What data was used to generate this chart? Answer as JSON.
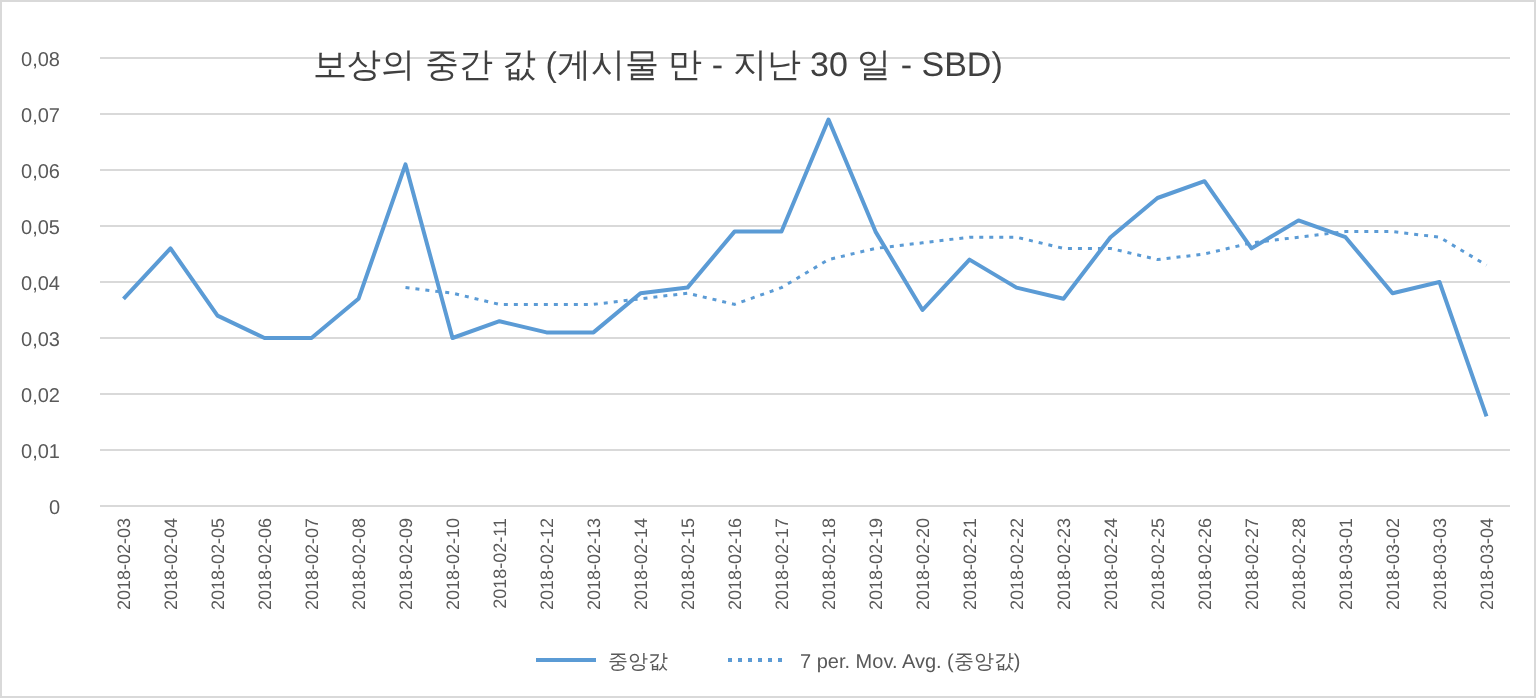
{
  "chart_data": {
    "type": "line",
    "title": "보상의 중간 값 (게시물 만 - 지난 30 일 - SBD)",
    "categories": [
      "2018-02-03",
      "2018-02-04",
      "2018-02-05",
      "2018-02-06",
      "2018-02-07",
      "2018-02-08",
      "2018-02-09",
      "2018-02-10",
      "2018-02-11",
      "2018-02-12",
      "2018-02-13",
      "2018-02-14",
      "2018-02-15",
      "2018-02-16",
      "2018-02-17",
      "2018-02-18",
      "2018-02-19",
      "2018-02-20",
      "2018-02-21",
      "2018-02-22",
      "2018-02-23",
      "2018-02-24",
      "2018-02-25",
      "2018-02-26",
      "2018-02-27",
      "2018-02-28",
      "2018-03-01",
      "2018-03-02",
      "2018-03-03",
      "2018-03-04"
    ],
    "series": [
      {
        "name": "중앙값",
        "color": "#5b9bd5",
        "line_style": "solid",
        "values": [
          0.037,
          0.046,
          0.034,
          0.03,
          0.03,
          0.037,
          0.061,
          0.03,
          0.033,
          0.031,
          0.031,
          0.038,
          0.039,
          0.049,
          0.049,
          0.069,
          0.049,
          0.035,
          0.044,
          0.039,
          0.037,
          0.048,
          0.055,
          0.058,
          0.046,
          0.051,
          0.048,
          0.038,
          0.04,
          0.016
        ]
      },
      {
        "name": "7 per. Mov. Avg. (중앙값)",
        "color": "#5b9bd5",
        "line_style": "dotted",
        "values": [
          null,
          null,
          null,
          null,
          null,
          null,
          0.039,
          0.038,
          0.036,
          0.036,
          0.036,
          0.037,
          0.038,
          0.036,
          0.039,
          0.044,
          0.046,
          0.047,
          0.048,
          0.048,
          0.046,
          0.046,
          0.044,
          0.045,
          0.047,
          0.048,
          0.049,
          0.049,
          0.048,
          0.043
        ]
      }
    ],
    "ylim": [
      0,
      0.08
    ],
    "yticks": [
      0,
      {
        "value": 0.01,
        "label": "0,01"
      },
      {
        "value": 0.02,
        "label": "0,02"
      },
      {
        "value": 0.03,
        "label": "0,03"
      },
      {
        "value": 0.04,
        "label": "0,04"
      },
      {
        "value": 0.05,
        "label": "0,05"
      },
      {
        "value": 0.06,
        "label": "0,06"
      },
      {
        "value": 0.07,
        "label": "0,07"
      },
      {
        "value": 0.08,
        "label": "0,08"
      }
    ],
    "grid": "y",
    "legend": "bottom",
    "marker": "none"
  }
}
